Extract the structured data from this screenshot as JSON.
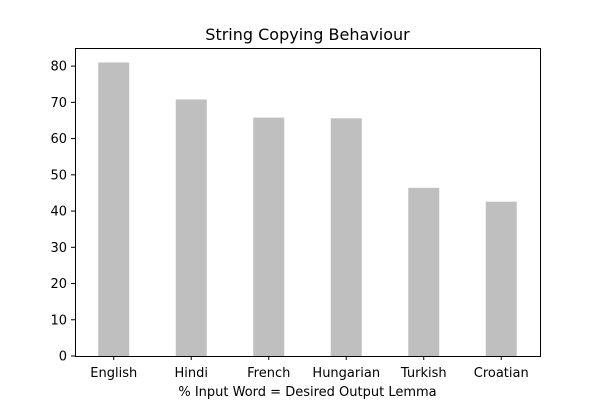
{
  "chart_data": {
    "type": "bar",
    "title": "String Copying Behaviour",
    "xlabel": "% Input Word = Desired Output Lemma",
    "ylabel": "",
    "categories": [
      "English",
      "Hindi",
      "French",
      "Hungarian",
      "Turkish",
      "Croatian"
    ],
    "values": [
      81.0,
      70.8,
      65.8,
      65.6,
      46.4,
      42.6
    ],
    "ylim": [
      0,
      85
    ],
    "yticks": [
      0,
      10,
      20,
      30,
      40,
      50,
      60,
      70,
      80
    ],
    "grid": false,
    "legend": "none",
    "bar_color": "#bfbfbf"
  }
}
